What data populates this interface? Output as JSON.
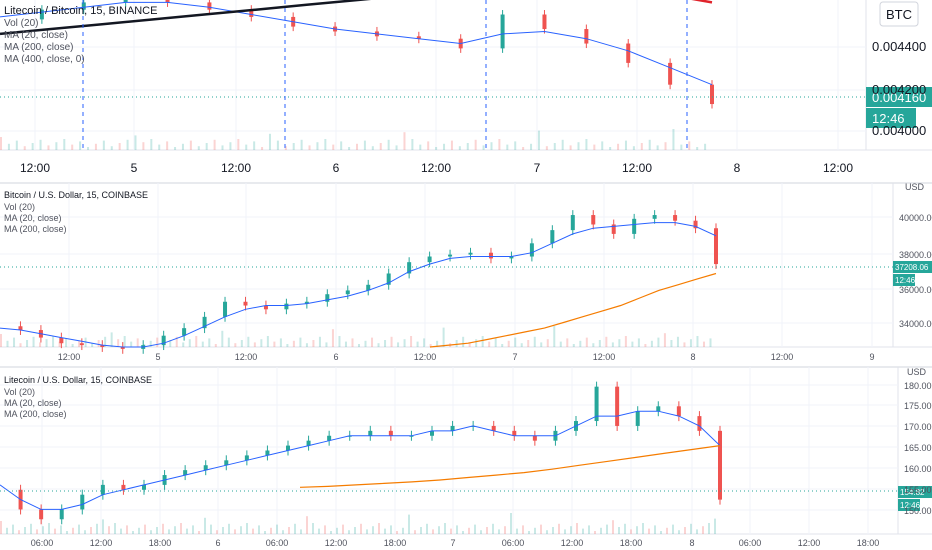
{
  "colors": {
    "up": "#26a69a",
    "down": "#ef5350",
    "ma20": "#2962ff",
    "ma200": "#f57c00",
    "ma_red": "#e0232b",
    "ma_black": "#131722",
    "last_price_bg": "#26a69a",
    "grid": "#f0f3fa"
  },
  "chart_data": [
    {
      "type": "line",
      "title": "Litecoin / Bitcoin, 15, BINANCE",
      "legend": [
        "Vol (20)",
        "MA (20, close)",
        "MA (200, close)",
        "MA (400, close, 0)"
      ],
      "currency_label": "BTC",
      "x_ticks": [
        "12:00",
        "5",
        "12:00",
        "6",
        "12:00",
        "7",
        "12:00",
        "8",
        "12:00"
      ],
      "y_ticks": [
        "0.004400",
        "0.004200",
        "0.004000"
      ],
      "ylim": [
        0.00394,
        0.00456
      ],
      "last_price": "0.004160",
      "countdown": "12:46",
      "series": [
        {
          "name": "Price",
          "values": [
            0.00448,
            0.00452,
            0.00455,
            0.00457,
            0.00455,
            0.00452,
            0.00449,
            0.00445,
            0.00443,
            0.00441,
            0.0044,
            0.00436,
            0.0045,
            0.00444,
            0.00438,
            0.0043,
            0.00421,
            0.00413
          ]
        },
        {
          "name": "MA (20, close)",
          "values": [
            0.00449,
            0.00451,
            0.00453,
            0.00455,
            0.00455,
            0.00453,
            0.0045,
            0.00447,
            0.00444,
            0.00442,
            0.0044,
            0.00438,
            0.00442,
            0.00443,
            0.0044,
            0.00435,
            0.00428,
            0.00421
          ]
        },
        {
          "name": "MA (200, close)",
          "values": [
            0.00459,
            0.00462,
            0.00462,
            0.00461,
            0.0046,
            0.00459,
            0.00458,
            0.00457,
            0.00456,
            0.00455
          ]
        },
        {
          "name": "MA (400, close, 0)",
          "values": [
            0.00442,
            0.00444,
            0.00446,
            0.00448,
            0.0045,
            0.00452,
            0.00454,
            0.00456,
            0.00458,
            0.0046
          ]
        }
      ]
    },
    {
      "type": "line",
      "title": "Bitcoin / U.S. Dollar, 15, COINBASE",
      "legend": [
        "Vol (20)",
        "MA (20, close)",
        "MA (200, close)"
      ],
      "currency_label": "USD",
      "x_ticks": [
        "12:00",
        "5",
        "12:00",
        "6",
        "12:00",
        "7",
        "12:00",
        "8",
        "12:00",
        "9"
      ],
      "y_ticks": [
        "40000.00",
        "38000.00",
        "36000.00",
        "34000.00"
      ],
      "ylim": [
        32800,
        41500
      ],
      "last_price": "37208.06",
      "countdown": "12:46",
      "series": [
        {
          "name": "Price",
          "values": [
            33900,
            33700,
            33300,
            33000,
            32900,
            32800,
            32700,
            32900,
            33400,
            33800,
            34400,
            35200,
            35000,
            34800,
            35100,
            35200,
            35600,
            35800,
            36100,
            36700,
            37300,
            37600,
            37700,
            37800,
            37500,
            37600,
            38300,
            39000,
            39800,
            39300,
            38800,
            39600,
            39800,
            39500,
            39100,
            37200
          ]
        },
        {
          "name": "MA (20, close)",
          "values": [
            33800,
            33700,
            33500,
            33300,
            33100,
            32900,
            32800,
            32800,
            33000,
            33400,
            33900,
            34400,
            34800,
            35000,
            35000,
            35100,
            35300,
            35500,
            35800,
            36200,
            36800,
            37200,
            37500,
            37600,
            37600,
            37600,
            37800,
            38300,
            38800,
            39100,
            39200,
            39300,
            39400,
            39400,
            39200,
            38700
          ]
        },
        {
          "name": "MA (200, close)",
          "values": [
            32800,
            32900,
            33000,
            33200,
            33400,
            33600,
            33800,
            34100,
            34400,
            34700,
            35000,
            35400,
            35800,
            36100,
            36400,
            36700
          ]
        }
      ]
    },
    {
      "type": "line",
      "title": "Litecoin / U.S. Dollar, 15, COINBASE",
      "legend": [
        "Vol (20)",
        "MA (20, close)",
        "MA (200, close)"
      ],
      "currency_label": "USD",
      "x_ticks": [
        "06:00",
        "12:00",
        "18:00",
        "6",
        "06:00",
        "12:00",
        "18:00",
        "7",
        "06:00",
        "12:00",
        "18:00",
        "8",
        "06:00",
        "12:00",
        "18:00"
      ],
      "y_ticks": [
        "180.00",
        "175.00",
        "170.00",
        "165.00",
        "160.00",
        "155.00",
        "150.00"
      ],
      "ylim": [
        148,
        182
      ],
      "last_price": "154.82",
      "countdown": "12:46",
      "series": [
        {
          "name": "Price",
          "values": [
            157,
            153,
            151,
            153,
            156,
            158,
            157,
            158,
            160,
            161,
            162,
            163,
            164,
            165,
            166,
            167,
            168,
            168,
            169,
            168,
            168,
            169,
            170,
            170,
            169,
            168,
            167,
            169,
            171,
            178,
            170,
            173,
            174,
            172,
            169,
            155
          ]
        },
        {
          "name": "MA (20, close)",
          "values": [
            158,
            155,
            153,
            153,
            154,
            156,
            157,
            158,
            159,
            160,
            161,
            162,
            163,
            164,
            165,
            166,
            167,
            168,
            168,
            168,
            168,
            169,
            169,
            170,
            169,
            168,
            168,
            168,
            170,
            172,
            172,
            173,
            173,
            172,
            170,
            166
          ]
        },
        {
          "name": "MA (200, close)",
          "values": [
            157.5,
            157.7,
            158,
            158.3,
            158.6,
            159,
            159.5,
            160,
            160.5,
            161.2,
            162,
            162.8,
            163.6,
            164.4,
            165.2,
            166
          ]
        }
      ]
    }
  ]
}
